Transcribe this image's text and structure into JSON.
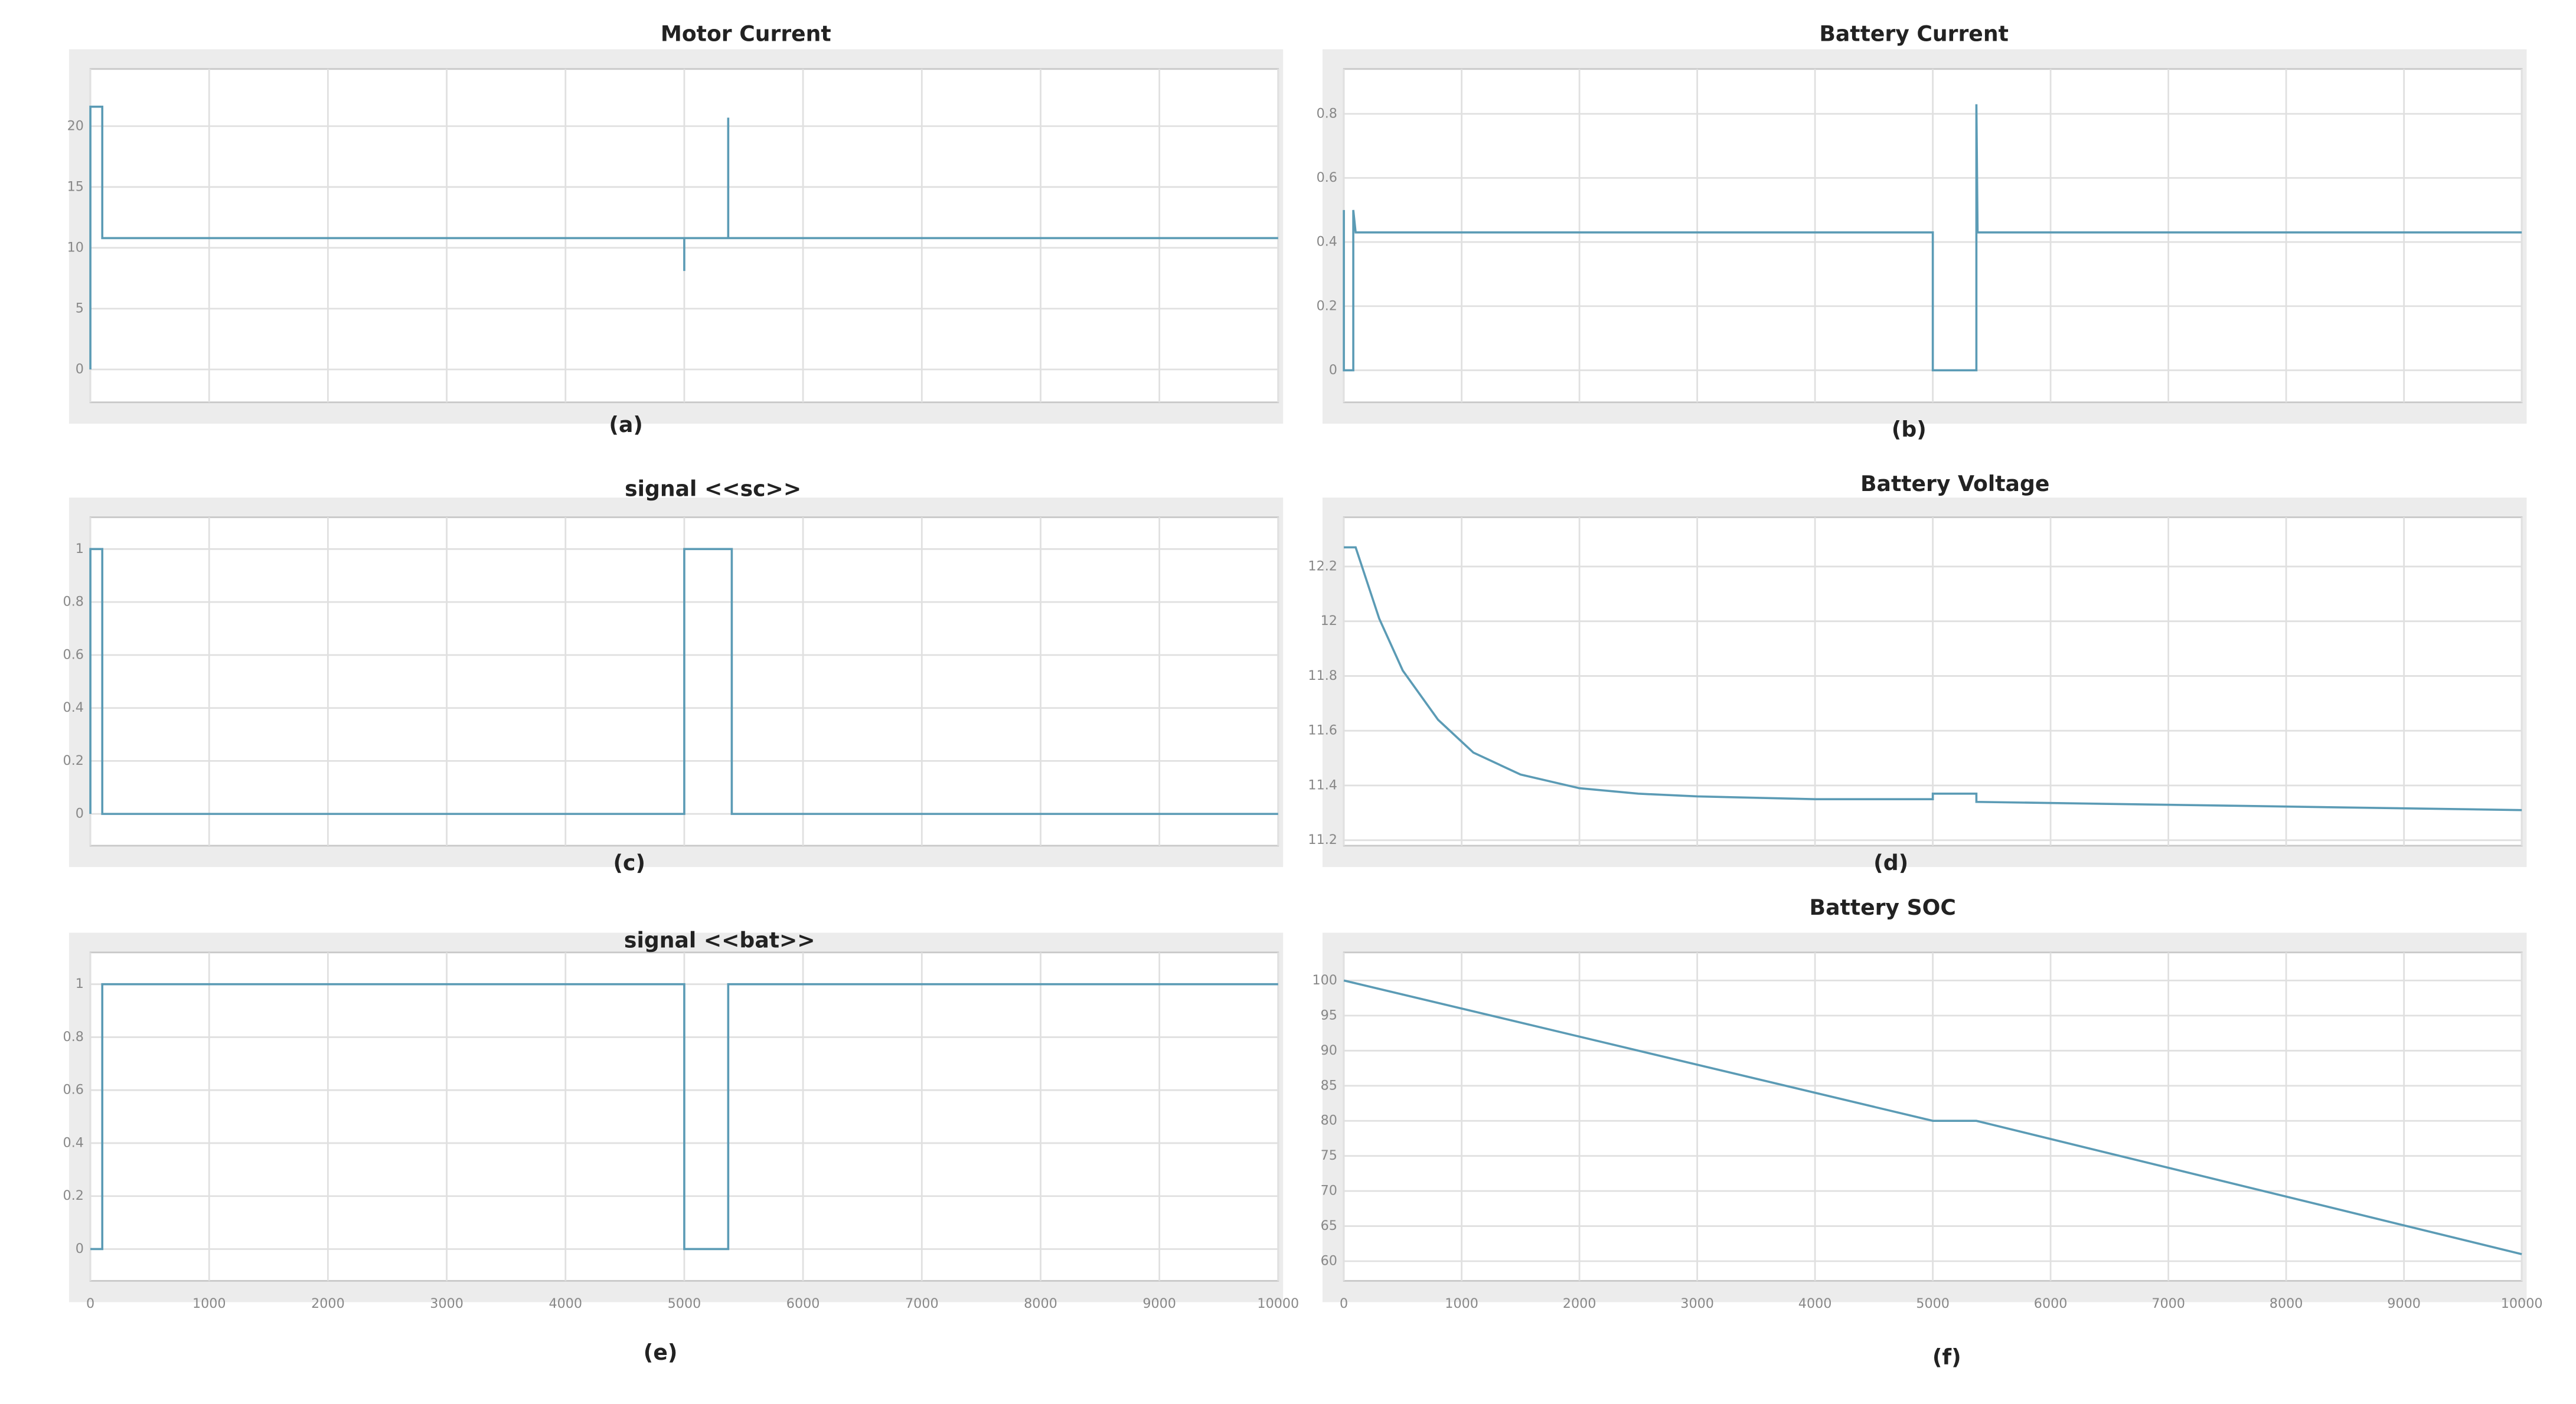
{
  "chart_data": [
    {
      "type": "line",
      "title": "Motor Current",
      "caption": "(a)",
      "color": "#5b9bb5",
      "grid": true,
      "x": [
        0,
        0,
        100,
        100,
        5000,
        5000,
        5000,
        5370,
        5370,
        5370,
        10000
      ],
      "values": [
        0,
        21.6,
        21.6,
        10.8,
        10.8,
        8.1,
        10.8,
        10.8,
        20.7,
        10.8,
        10.8
      ],
      "xlim": [
        0,
        10000
      ],
      "xticks": [
        0,
        1000,
        2000,
        3000,
        4000,
        5000,
        6000,
        7000,
        8000,
        9000,
        10000
      ],
      "ylim": [
        -2.7,
        24.7
      ],
      "yticks": [
        0,
        5,
        10,
        15,
        20
      ]
    },
    {
      "type": "line",
      "title": "Battery Current",
      "caption": "(b)",
      "color": "#5b9bb5",
      "grid": true,
      "x": [
        0,
        0,
        80,
        80,
        100,
        5000,
        5000,
        5370,
        5370,
        5380,
        10000
      ],
      "values": [
        0.5,
        0,
        0,
        0.5,
        0.43,
        0.43,
        0,
        0,
        0.83,
        0.43,
        0.43
      ],
      "xlim": [
        0,
        10000
      ],
      "xticks": [
        0,
        1000,
        2000,
        3000,
        4000,
        5000,
        6000,
        7000,
        8000,
        9000,
        10000
      ],
      "ylim": [
        -0.1,
        0.94
      ],
      "yticks": [
        0,
        0.2,
        0.4,
        0.6,
        0.8
      ]
    },
    {
      "type": "line",
      "title": "signal <<sc>>",
      "caption": "(c)",
      "color": "#5b9bb5",
      "grid": true,
      "x": [
        0,
        0,
        100,
        100,
        5000,
        5000,
        5400,
        5400,
        10000
      ],
      "values": [
        0,
        1,
        1,
        0,
        0,
        1,
        1,
        0,
        0
      ],
      "xlim": [
        0,
        10000
      ],
      "xticks": [
        0,
        1000,
        2000,
        3000,
        4000,
        5000,
        6000,
        7000,
        8000,
        9000,
        10000
      ],
      "ylim": [
        -0.12,
        1.12
      ],
      "yticks": [
        0,
        0.2,
        0.4,
        0.6,
        0.8,
        1
      ]
    },
    {
      "type": "line",
      "title": "Battery Voltage",
      "caption": "(d)",
      "color": "#5b9bb5",
      "grid": true,
      "x": [
        0,
        100,
        300,
        500,
        800,
        1100,
        1500,
        2000,
        2500,
        3000,
        4000,
        5000,
        5000,
        5370,
        5370,
        10000
      ],
      "values": [
        12.27,
        12.27,
        12.01,
        11.82,
        11.64,
        11.52,
        11.44,
        11.39,
        11.37,
        11.36,
        11.35,
        11.35,
        11.37,
        11.37,
        11.34,
        11.31
      ],
      "xlim": [
        0,
        10000
      ],
      "xticks": [
        0,
        1000,
        2000,
        3000,
        4000,
        5000,
        6000,
        7000,
        8000,
        9000,
        10000
      ],
      "ylim": [
        11.18,
        12.38
      ],
      "yticks": [
        11.2,
        11.4,
        11.6,
        11.8,
        12,
        12.2
      ]
    },
    {
      "type": "line",
      "title": "signal <<bat>>",
      "caption": "(e)",
      "color": "#5b9bb5",
      "grid": true,
      "xtick_labels": true,
      "x": [
        0,
        100,
        100,
        5000,
        5000,
        5370,
        5370,
        10000
      ],
      "values": [
        0,
        0,
        1,
        1,
        0,
        0,
        1,
        1
      ],
      "xlim": [
        0,
        10000
      ],
      "xticks": [
        0,
        1000,
        2000,
        3000,
        4000,
        5000,
        6000,
        7000,
        8000,
        9000,
        10000
      ],
      "ylim": [
        -0.12,
        1.12
      ],
      "yticks": [
        0,
        0.2,
        0.4,
        0.6,
        0.8,
        1
      ]
    },
    {
      "type": "line",
      "title": "Battery SOC",
      "caption": "(f)",
      "color": "#5b9bb5",
      "grid": true,
      "xtick_labels": true,
      "x": [
        0,
        5000,
        5370,
        10000
      ],
      "values": [
        100,
        80,
        80,
        61
      ],
      "xlim": [
        0,
        10000
      ],
      "xticks": [
        0,
        1000,
        2000,
        3000,
        4000,
        5000,
        6000,
        7000,
        8000,
        9000,
        10000
      ],
      "ylim": [
        57.2,
        104
      ],
      "yticks": [
        60,
        65,
        70,
        75,
        80,
        85,
        90,
        95,
        100
      ]
    }
  ]
}
